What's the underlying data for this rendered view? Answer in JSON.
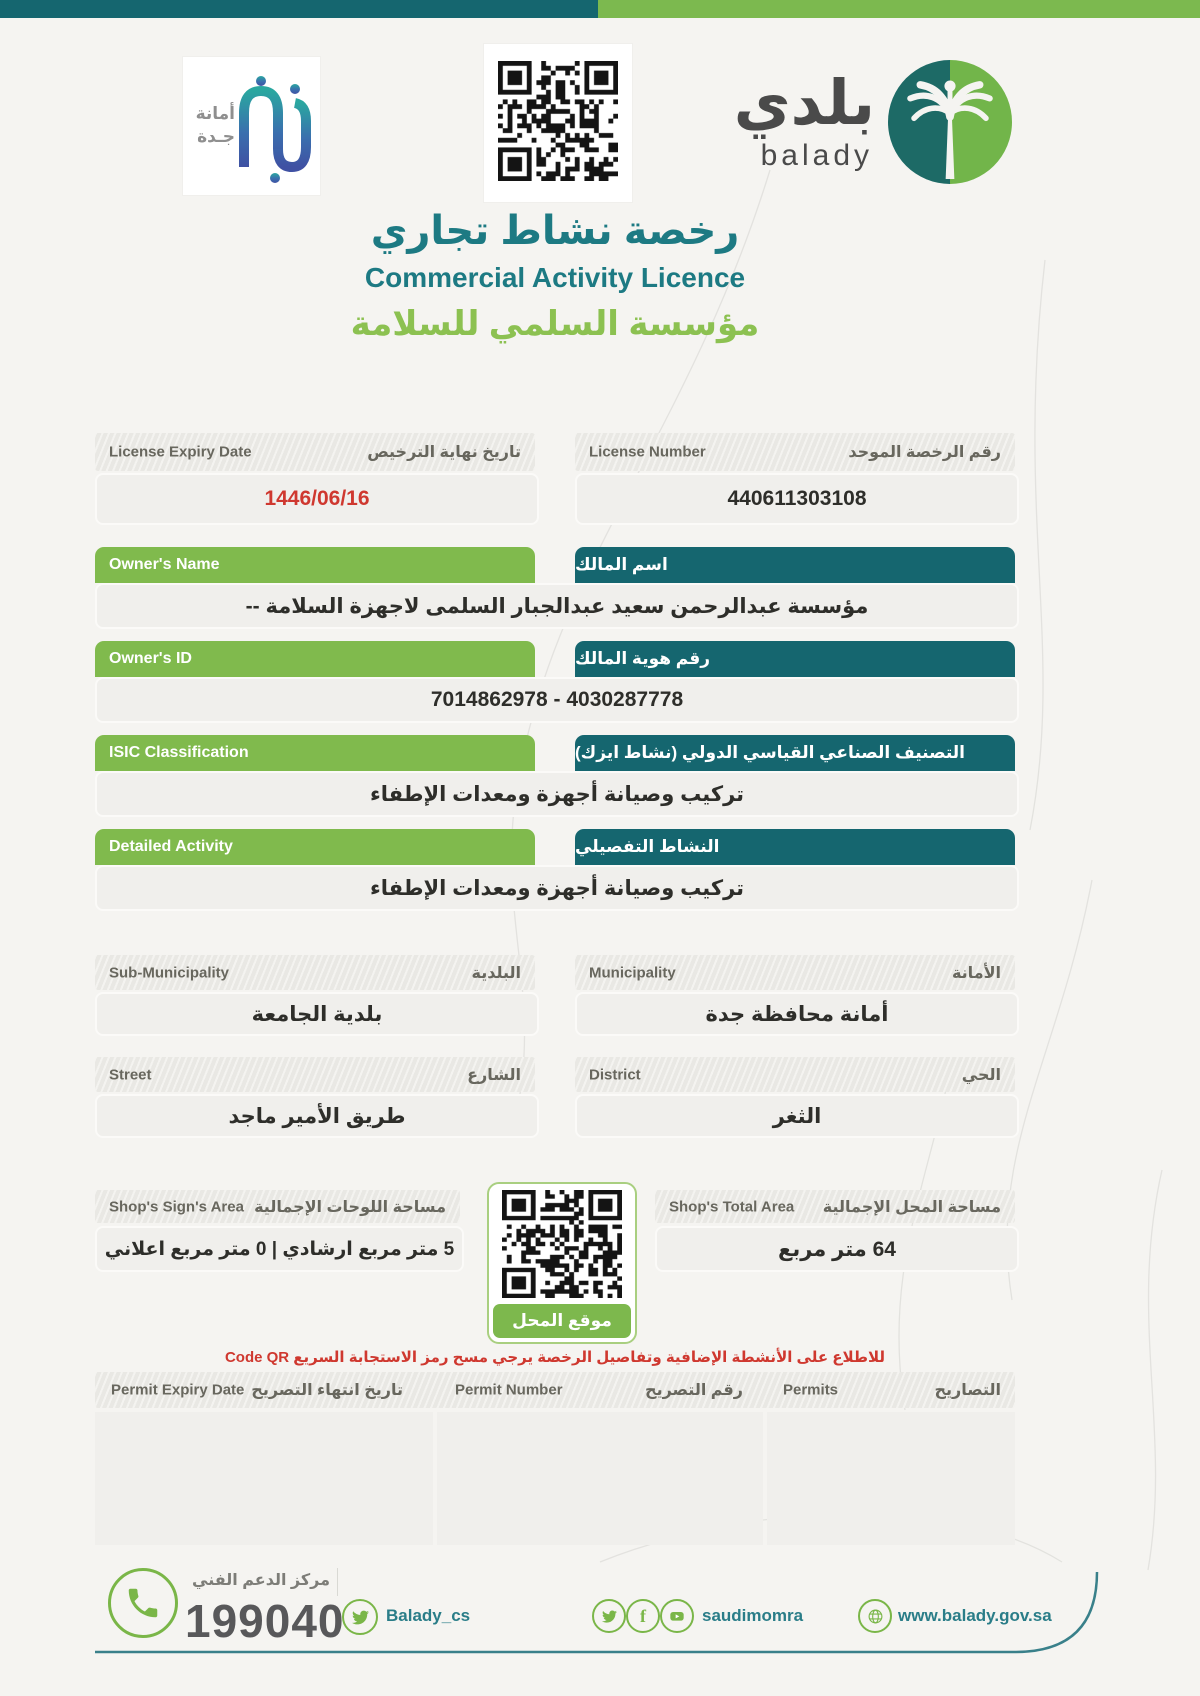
{
  "colors": {
    "topbar_teal": "#15666f",
    "topbar_green": "#7cb94f",
    "title_teal": "#1d7a83",
    "org_green": "#8cc151",
    "bar_green": "#80ba4d",
    "bar_teal": "#15666f",
    "alert_red": "#cf382f",
    "footer_icon_green": "#7ab648",
    "footer_text_teal": "#2a7d88"
  },
  "top_logos": {
    "jeddah": {
      "line1": "أمانة",
      "line2": "جـدة"
    },
    "balady": {
      "arabic": "بلدي",
      "latin": "balady"
    }
  },
  "titles": {
    "license_ar": "رخصة نشاط تجاري",
    "license_en": "Commercial Activity Licence",
    "establishment": "مؤسسة السلمي للسلامة"
  },
  "fields": {
    "license_number": {
      "en": "License Number",
      "ar": "رقم الرخصة الموحد",
      "value": "440611303108"
    },
    "license_expiry": {
      "en": "License Expiry Date",
      "ar": "تاريخ نهاية الترخيص",
      "value": "1446/06/16"
    },
    "owner_name": {
      "en": "Owner's Name",
      "ar": "اسم المالك",
      "value": "مؤسسة عبدالرحمن سعيد عبدالجبار السلمى لاجهزة السلامة --"
    },
    "owner_id": {
      "en": "Owner's ID",
      "ar": "رقم هوية المالك",
      "value": "7014862978 - 4030287778"
    },
    "isic": {
      "en": "ISIC Classification",
      "ar": "التصنيف الصناعي القياسي الدولي (نشاط ايزك)",
      "value": "تركيب وصيانة أجهزة ومعدات الإطفاء"
    },
    "detailed_activity": {
      "en": "Detailed Activity",
      "ar": "النشاط التفصيلي",
      "value": "تركيب وصيانة أجهزة ومعدات الإطفاء"
    },
    "municipality": {
      "en": "Municipality",
      "ar": "الأمانة",
      "value": "أمانة محافظة جدة"
    },
    "sub_municipality": {
      "en": "Sub-Municipality",
      "ar": "البلدية",
      "value": "بلدية الجامعة"
    },
    "district": {
      "en": "District",
      "ar": "الحي",
      "value": "الثغر"
    },
    "street": {
      "en": "Street",
      "ar": "الشارع",
      "value": "طريق الأمير ماجد"
    },
    "shop_total_area": {
      "en": "Shop's Total Area",
      "ar": "مساحة المحل الإجمالية",
      "value": "64 متر مربع"
    },
    "shop_sign_area": {
      "en": "Shop's Sign's Area",
      "ar": "مساحة اللوحات الإجمالية",
      "value": "5 متر مربع ارشادي | 0 متر مربع اعلاني"
    }
  },
  "location_qr": {
    "caption": "موقع المحل"
  },
  "qr_note": "للاطلاع على الأنشطة الإضافية وتفاصيل الرخصة يرجي مسح رمز الاستجابة السريع Code QR",
  "permits_table": {
    "permits": {
      "en": "Permits",
      "ar": "التصاريح"
    },
    "permit_number": {
      "en": "Permit Number",
      "ar": "رقم التصريح"
    },
    "permit_expiry": {
      "en": "Permit Expiry Date",
      "ar": "تاريخ انتهاء التصريح"
    },
    "rows": []
  },
  "footer": {
    "support_center_label": "مركز الدعم الفني",
    "support_number": "199040",
    "twitter_handle": "Balady_cs",
    "social_account": "saudimomra",
    "website": "www.balady.gov.sa"
  }
}
